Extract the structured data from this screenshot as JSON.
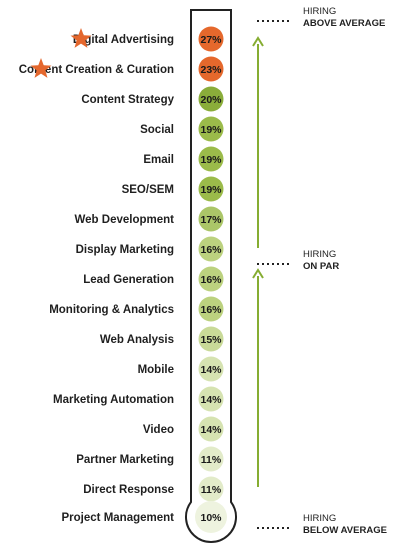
{
  "chart_data": {
    "type": "bar",
    "categories": [
      "Digital Advertising",
      "Content Creation & Curation",
      "Content Strategy",
      "Social",
      "Email",
      "SEO/SEM",
      "Web Development",
      "Display Marketing",
      "Lead Generation",
      "Monitoring & Analytics",
      "Web Analysis",
      "Mobile",
      "Marketing Automation",
      "Video",
      "Partner Marketing",
      "Direct Response",
      "Project Management"
    ],
    "values": [
      27,
      23,
      20,
      19,
      19,
      19,
      17,
      16,
      16,
      16,
      15,
      14,
      14,
      14,
      11,
      11,
      10
    ],
    "value_labels": [
      "27%",
      "23%",
      "20%",
      "19%",
      "19%",
      "19%",
      "17%",
      "16%",
      "16%",
      "16%",
      "15%",
      "14%",
      "14%",
      "14%",
      "11%",
      "11%",
      "10%"
    ],
    "starred": [
      "Digital Advertising",
      "Content Creation & Curation"
    ],
    "bands": [
      {
        "line1": "HIRING",
        "line2": "ABOVE AVERAGE"
      },
      {
        "line1": "HIRING",
        "line2": "ON PAR"
      },
      {
        "line1": "HIRING",
        "line2": "BELOW AVERAGE"
      }
    ],
    "colors": {
      "27": "#e5682c",
      "23": "#e5682c",
      "20": "#8aad3a",
      "19": "#9bbb4a",
      "17": "#abc668",
      "16": "#bcd27f",
      "15": "#c9da98",
      "14": "#d6e3b1",
      "11": "#e2ebc9",
      "10": "#eef3df",
      "star": "#e4672d",
      "arrow": "#86ad32",
      "outline": "#222222"
    }
  }
}
